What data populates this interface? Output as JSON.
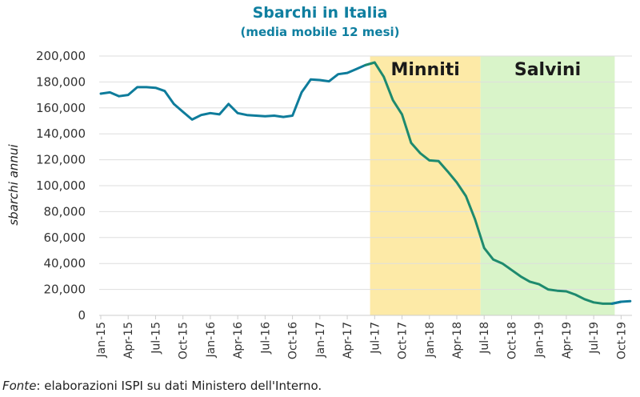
{
  "chart_data": {
    "type": "line",
    "title": "Sbarchi in Italia",
    "subtitle": "(media mobile 12 mesi)",
    "xlabel": "",
    "ylabel": "sbarchi annui",
    "ylim": [
      0,
      200000
    ],
    "yticks": [
      0,
      20000,
      40000,
      60000,
      80000,
      100000,
      120000,
      140000,
      160000,
      180000,
      200000
    ],
    "ytick_labels": [
      "0",
      "20,000",
      "40,000",
      "60,000",
      "80,000",
      "100,000",
      "120,000",
      "140,000",
      "160,000",
      "180,000",
      "200,000"
    ],
    "grid": true,
    "xtick_labels": [
      "Jan-15",
      "Apr-15",
      "Jul-15",
      "Oct-15",
      "Jan-16",
      "Apr-16",
      "Jul-16",
      "Oct-16",
      "Jan-17",
      "Apr-17",
      "Jul-17",
      "Oct-17",
      "Jan-18",
      "Apr-18",
      "Jul-18",
      "Oct-18",
      "Jan-19",
      "Apr-19",
      "Jul-19",
      "Oct-19"
    ],
    "x_start": "Jan-15",
    "x_step": "month",
    "series": [
      {
        "name": "Sbarchi (media mobile 12 mesi)",
        "color": "#0e7c9b",
        "values": [
          171000,
          172000,
          169000,
          170000,
          176000,
          176000,
          175500,
          173000,
          163000,
          157000,
          151000,
          154500,
          156000,
          155000,
          163000,
          156000,
          154500,
          154000,
          153500,
          154000,
          153000,
          154000,
          172000,
          182000,
          181500,
          180500,
          186000,
          187000,
          190000,
          193000,
          195000,
          184000,
          166000,
          155000,
          133000,
          125000,
          119500,
          119000,
          111000,
          102500,
          92000,
          74000,
          52000,
          43000,
          40000,
          35000,
          30000,
          26000,
          24000,
          20000,
          19000,
          18500,
          16000,
          12500,
          10000,
          9000,
          9000,
          10500,
          11000
        ]
      }
    ],
    "bands": [
      {
        "label": "Minniti",
        "start_month_index": 29.5,
        "end_month_index": 41.6,
        "color": "#fdeaa7"
      },
      {
        "label": "Salvini",
        "start_month_index": 41.6,
        "end_month_index": 56.3,
        "color": "#d9f4c9"
      }
    ],
    "band_line_color": "#1e8a6e",
    "source": {
      "prefix": "Fonte",
      "text": ": elaborazioni ISPI su dati Ministero dell'Interno."
    }
  }
}
